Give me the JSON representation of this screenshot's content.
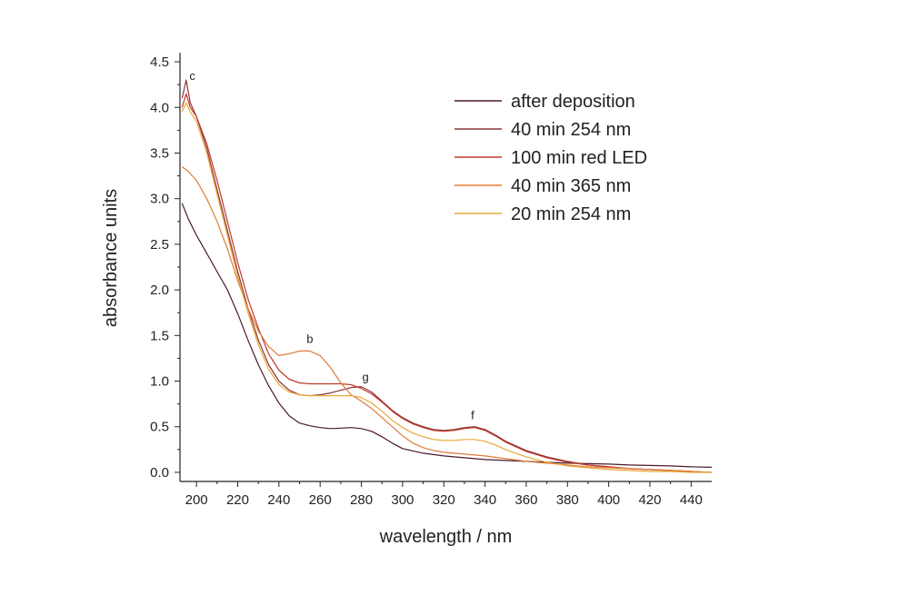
{
  "chart_data": {
    "type": "line",
    "title": "",
    "xlabel": "wavelength / nm",
    "ylabel": "absorbance units",
    "xlim": [
      192,
      450
    ],
    "ylim": [
      -0.1,
      4.6
    ],
    "grid": false,
    "legend_position": "top-right",
    "x_ticks": [
      200,
      220,
      240,
      260,
      280,
      300,
      320,
      340,
      360,
      380,
      400,
      420,
      440
    ],
    "x_tick_labels": [
      "200",
      "220",
      "240",
      "260",
      "280",
      "300",
      "320",
      "340",
      "360",
      "380",
      "400",
      "420",
      "440"
    ],
    "y_ticks": [
      0.0,
      0.5,
      1.0,
      1.5,
      2.0,
      2.5,
      3.0,
      3.5,
      4.0,
      4.5
    ],
    "y_tick_labels": [
      "0.0",
      "0.5",
      "1.0",
      "1.5",
      "2.0",
      "2.5",
      "3.0",
      "3.5",
      "4.0",
      "4.5"
    ],
    "series": [
      {
        "name": "after deposition",
        "color": "#4a1a2c",
        "x": [
          193,
          196,
          200,
          205,
          210,
          215,
          220,
          225,
          230,
          235,
          240,
          245,
          250,
          255,
          260,
          265,
          270,
          275,
          280,
          285,
          290,
          295,
          300,
          310,
          320,
          330,
          340,
          350,
          360,
          370,
          380,
          390,
          400,
          410,
          420,
          430,
          440,
          450
        ],
        "values": [
          2.95,
          2.78,
          2.6,
          2.4,
          2.2,
          2.0,
          1.74,
          1.45,
          1.18,
          0.95,
          0.76,
          0.62,
          0.54,
          0.51,
          0.49,
          0.48,
          0.485,
          0.49,
          0.48,
          0.45,
          0.39,
          0.32,
          0.26,
          0.21,
          0.18,
          0.16,
          0.14,
          0.13,
          0.12,
          0.11,
          0.1,
          0.095,
          0.09,
          0.08,
          0.075,
          0.07,
          0.06,
          0.055
        ]
      },
      {
        "name": "40 min 254 nm",
        "color": "#8b3535",
        "x": [
          193,
          195,
          197,
          200,
          205,
          210,
          215,
          220,
          225,
          230,
          235,
          240,
          245,
          250,
          255,
          260,
          265,
          270,
          275,
          280,
          285,
          290,
          295,
          300,
          305,
          310,
          315,
          320,
          325,
          330,
          335,
          340,
          345,
          350,
          360,
          370,
          380,
          390,
          400,
          410,
          420,
          430,
          440,
          450
        ],
        "values": [
          4.1,
          4.3,
          4.05,
          3.9,
          3.55,
          3.1,
          2.65,
          2.2,
          1.8,
          1.45,
          1.18,
          1.0,
          0.9,
          0.85,
          0.84,
          0.85,
          0.87,
          0.9,
          0.93,
          0.94,
          0.88,
          0.78,
          0.68,
          0.6,
          0.54,
          0.5,
          0.47,
          0.46,
          0.47,
          0.49,
          0.5,
          0.47,
          0.41,
          0.34,
          0.24,
          0.17,
          0.12,
          0.08,
          0.06,
          0.04,
          0.03,
          0.02,
          0.01,
          0.0
        ]
      },
      {
        "name": "100 min red LED",
        "color": "#c0392b",
        "x": [
          193,
          195,
          197,
          200,
          205,
          210,
          215,
          220,
          225,
          230,
          235,
          240,
          245,
          250,
          255,
          260,
          265,
          270,
          275,
          280,
          285,
          290,
          295,
          300,
          305,
          310,
          315,
          320,
          325,
          330,
          335,
          340,
          345,
          350,
          360,
          370,
          380,
          390,
          400,
          410,
          420,
          430,
          440,
          450
        ],
        "values": [
          4.0,
          4.15,
          4.0,
          3.9,
          3.6,
          3.2,
          2.75,
          2.3,
          1.9,
          1.58,
          1.3,
          1.12,
          1.02,
          0.98,
          0.97,
          0.97,
          0.97,
          0.97,
          0.96,
          0.92,
          0.86,
          0.77,
          0.67,
          0.59,
          0.53,
          0.49,
          0.46,
          0.45,
          0.46,
          0.48,
          0.49,
          0.46,
          0.4,
          0.33,
          0.23,
          0.16,
          0.11,
          0.08,
          0.06,
          0.04,
          0.03,
          0.02,
          0.01,
          0.0
        ]
      },
      {
        "name": "40 min 365 nm",
        "color": "#e07b39",
        "x": [
          193,
          196,
          200,
          205,
          210,
          215,
          220,
          225,
          230,
          235,
          240,
          245,
          250,
          255,
          260,
          265,
          270,
          275,
          280,
          285,
          290,
          295,
          300,
          305,
          310,
          315,
          320,
          330,
          340,
          350,
          360,
          370,
          380,
          390,
          400,
          410,
          420,
          430,
          440,
          450
        ],
        "values": [
          3.35,
          3.3,
          3.2,
          3.0,
          2.75,
          2.45,
          2.1,
          1.8,
          1.55,
          1.38,
          1.28,
          1.3,
          1.33,
          1.33,
          1.28,
          1.15,
          0.98,
          0.85,
          0.78,
          0.7,
          0.6,
          0.5,
          0.4,
          0.32,
          0.27,
          0.24,
          0.22,
          0.2,
          0.18,
          0.15,
          0.12,
          0.1,
          0.08,
          0.06,
          0.05,
          0.04,
          0.03,
          0.02,
          0.01,
          0.0
        ]
      },
      {
        "name": "20 min 254 nm",
        "color": "#e8a838",
        "x": [
          193,
          195,
          197,
          200,
          205,
          210,
          215,
          220,
          225,
          230,
          235,
          240,
          245,
          250,
          255,
          260,
          265,
          270,
          275,
          280,
          285,
          290,
          295,
          300,
          305,
          310,
          315,
          320,
          325,
          330,
          335,
          340,
          345,
          350,
          360,
          370,
          380,
          390,
          400,
          410,
          420,
          430,
          440,
          450
        ],
        "values": [
          3.95,
          4.05,
          3.95,
          3.85,
          3.5,
          3.05,
          2.6,
          2.15,
          1.75,
          1.4,
          1.13,
          0.96,
          0.88,
          0.85,
          0.84,
          0.84,
          0.84,
          0.84,
          0.84,
          0.82,
          0.76,
          0.67,
          0.57,
          0.49,
          0.43,
          0.39,
          0.36,
          0.35,
          0.35,
          0.36,
          0.36,
          0.34,
          0.3,
          0.25,
          0.17,
          0.11,
          0.07,
          0.05,
          0.03,
          0.02,
          0.01,
          0.01,
          0.0,
          0.0
        ]
      }
    ],
    "annotations": [
      {
        "text": "c",
        "x": 198,
        "y": 4.3
      },
      {
        "text": "b",
        "x": 255,
        "y": 1.42
      },
      {
        "text": "g",
        "x": 282,
        "y": 1.0
      },
      {
        "text": "f",
        "x": 334,
        "y": 0.58
      }
    ]
  }
}
